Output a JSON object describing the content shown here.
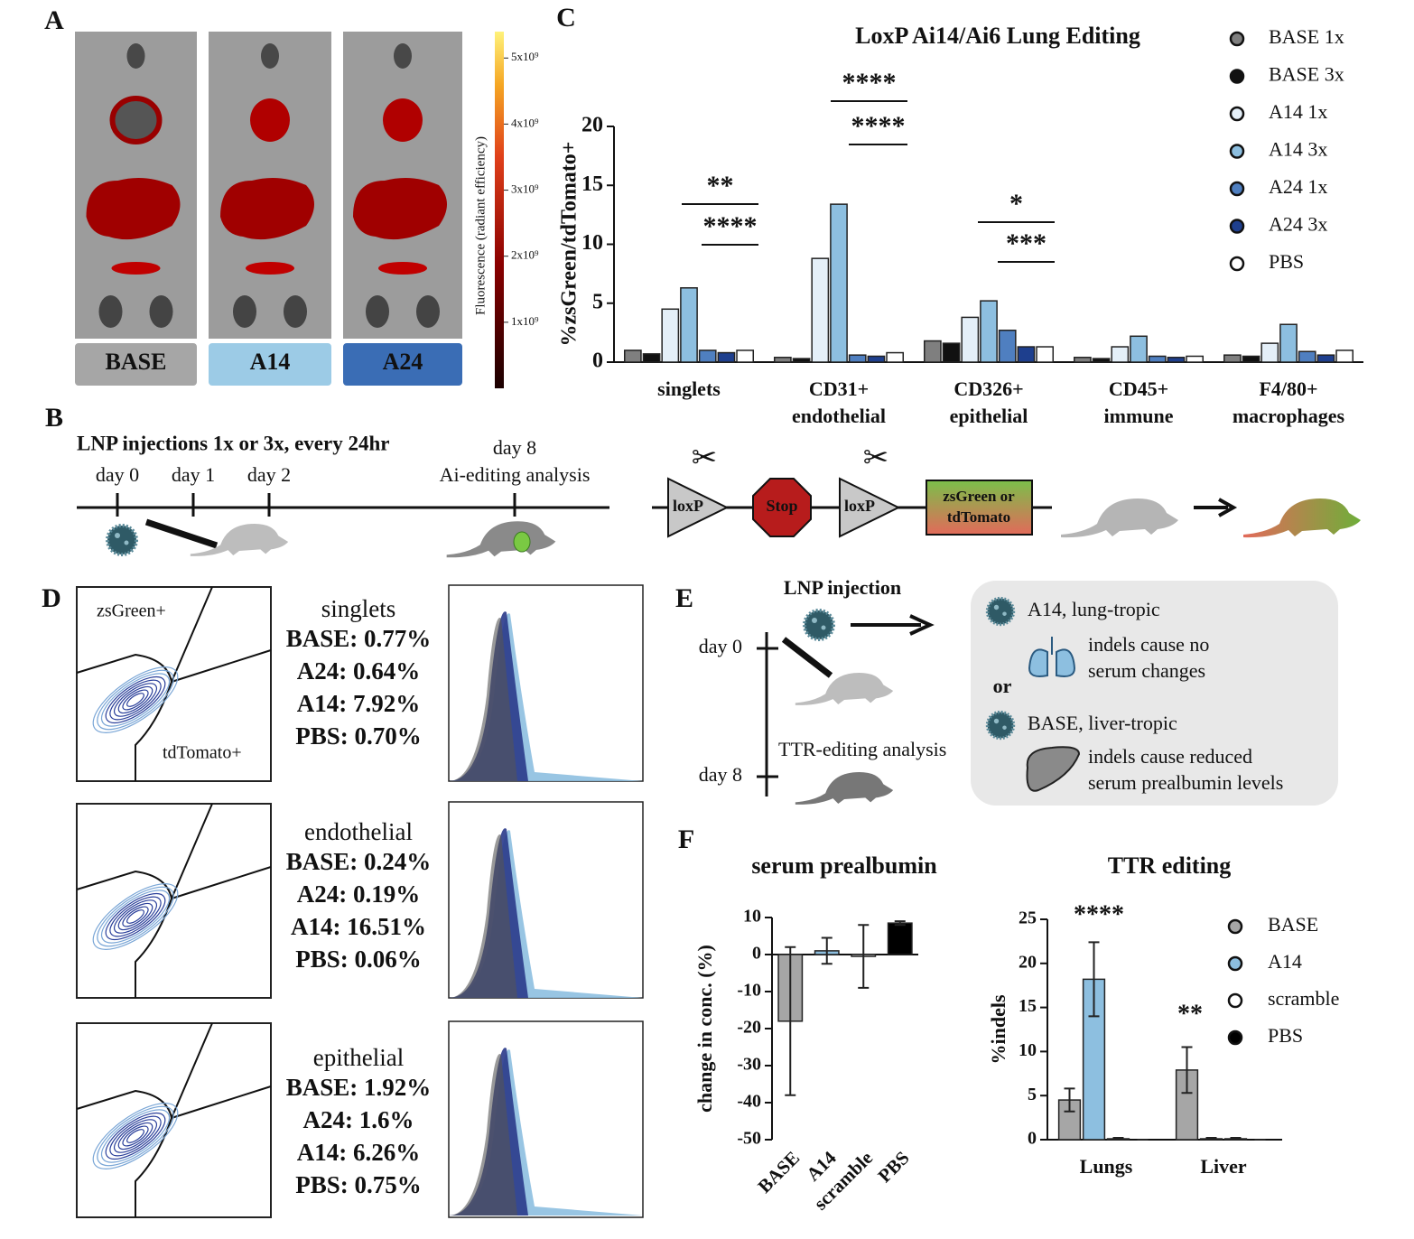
{
  "panel_labels": [
    "A",
    "B",
    "C",
    "D",
    "E",
    "F"
  ],
  "panel_a": {
    "groups": [
      "BASE",
      "A14",
      "A24"
    ],
    "colorbar": {
      "label": "Fluorescence (radiant efficiency)",
      "lim": [
        0,
        5400000000
      ],
      "ticks": [
        {
          "value": 1000000000,
          "label": "1x10⁹"
        },
        {
          "value": 2000000000,
          "label": "2x10⁹"
        },
        {
          "value": 3000000000,
          "label": "3x10⁹"
        },
        {
          "value": 4000000000,
          "label": "4x10⁹"
        },
        {
          "value": 5000000000,
          "label": "5x10⁹"
        }
      ]
    }
  },
  "panel_b": {
    "title": "LNP injections 1x or 3x, every 24hr",
    "days": [
      "day 0",
      "day 1",
      "day 2",
      "day 8"
    ],
    "analysis": "Ai-editing analysis",
    "construct": [
      "loxP",
      "Stop",
      "loxP"
    ],
    "reporter": [
      "zsGreen or",
      "tdTomato"
    ]
  },
  "chart_data": [
    {
      "type": "bar",
      "title": "LoxP Ai14/Ai6 Lung Editing",
      "y_label": "%zsGreen/tdTomato+",
      "categories": [
        "singlets",
        "CD31+ endothelial",
        "CD326+ epithelial",
        "CD45+ immune",
        "F4/80+ macrophages"
      ],
      "series": [
        {
          "name": "BASE 1x",
          "color": "#7f7f7f",
          "values": [
            1.0,
            0.4,
            1.8,
            0.4,
            0.6
          ]
        },
        {
          "name": "BASE 3x",
          "color": "#111111",
          "values": [
            0.7,
            0.3,
            1.6,
            0.3,
            0.5
          ]
        },
        {
          "name": "A14 1x",
          "color": "#e4eff8",
          "values": [
            4.5,
            8.8,
            3.8,
            1.3,
            1.6
          ]
        },
        {
          "name": "A14 3x",
          "color": "#8dbfe0",
          "values": [
            6.3,
            13.4,
            5.2,
            2.2,
            3.2
          ]
        },
        {
          "name": "A24 1x",
          "color": "#4f7fc0",
          "values": [
            1.0,
            0.6,
            2.7,
            0.5,
            0.9
          ]
        },
        {
          "name": "A24 3x",
          "color": "#1e3f8e",
          "values": [
            0.8,
            0.5,
            1.3,
            0.4,
            0.6
          ]
        },
        {
          "name": "PBS",
          "color": "#ffffff",
          "values": [
            1.0,
            0.8,
            1.3,
            0.5,
            1.0
          ]
        }
      ],
      "ylim": [
        0,
        20
      ],
      "yticks": [
        0,
        5,
        10,
        15,
        20
      ],
      "annotations": [
        "**",
        "****",
        "****",
        "****",
        "*",
        "***"
      ]
    },
    {
      "type": "bar",
      "title": "serum prealbumin",
      "y_label": "change in conc. (%)",
      "categories": [
        "BASE",
        "A14",
        "scramble",
        "PBS"
      ],
      "values": [
        -18,
        1,
        -0.5,
        8.5
      ],
      "errors": [
        20,
        3.5,
        8.5,
        0.5
      ],
      "colors": [
        "#a6a6a6",
        "#8dbfe0",
        "#ffffff",
        "#000000"
      ],
      "ylim": [
        -50,
        10
      ],
      "yticks": [
        -50,
        -40,
        -30,
        -20,
        -10,
        0,
        10
      ]
    },
    {
      "type": "bar",
      "title": "TTR editing",
      "y_label": "%indels",
      "categories": [
        "Lungs",
        "Liver"
      ],
      "series": [
        {
          "name": "BASE",
          "color": "#a6a6a6",
          "values": [
            4.5,
            7.9
          ],
          "errors": [
            1.3,
            2.6
          ]
        },
        {
          "name": "A14",
          "color": "#8dbfe0",
          "values": [
            18.2,
            0.1
          ],
          "errors": [
            4.2,
            0.1
          ]
        },
        {
          "name": "scramble",
          "color": "#ffffff",
          "values": [
            0.1,
            0.1
          ],
          "errors": [
            0.1,
            0.1
          ]
        },
        {
          "name": "PBS",
          "color": "#000000",
          "values": [
            0,
            0
          ],
          "errors": [
            0,
            0
          ]
        }
      ],
      "ylim": [
        0,
        25
      ],
      "yticks": [
        0,
        5,
        10,
        15,
        20,
        25
      ],
      "annotations": [
        "****",
        "**"
      ]
    }
  ],
  "panel_d": {
    "gates": [
      "zsGreen+",
      "tdTomato+"
    ],
    "rows": [
      {
        "title": "singlets",
        "lines": [
          "BASE: 0.77%",
          "A24: 0.64%",
          "A14: 7.92%",
          "PBS: 0.70%"
        ]
      },
      {
        "title": "endothelial",
        "lines": [
          "BASE: 0.24%",
          "A24: 0.19%",
          "A14: 16.51%",
          "PBS: 0.06%"
        ]
      },
      {
        "title": "epithelial",
        "lines": [
          "BASE: 1.92%",
          "A24: 1.6%",
          "A14: 6.26%",
          "PBS: 0.75%"
        ]
      }
    ]
  },
  "panel_e": {
    "title": "LNP injection",
    "days": [
      "day 0",
      "day 8"
    ],
    "analysis": "TTR-editing analysis",
    "or": "or",
    "options": [
      {
        "name": "A14, lung-tropic",
        "note": [
          "indels cause no",
          "serum changes"
        ]
      },
      {
        "name": "BASE, liver-tropic",
        "note": [
          "indels cause reduced",
          "serum prealbumin levels"
        ]
      }
    ]
  }
}
